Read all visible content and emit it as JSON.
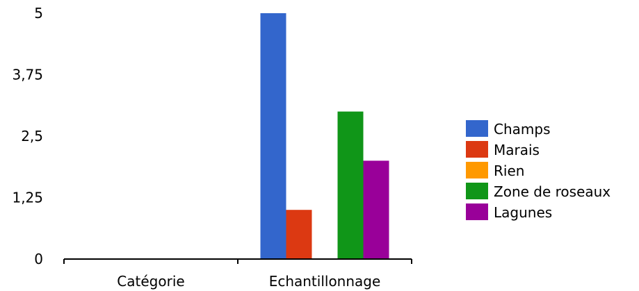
{
  "chart_data": {
    "type": "bar",
    "categories": [
      "Catégorie",
      "Echantillonnage"
    ],
    "ylim": [
      0,
      5
    ],
    "yticks": [
      "0",
      "1,25",
      "2,5",
      "3,75",
      "5"
    ],
    "ytick_values": [
      0,
      1.25,
      2.5,
      3.75,
      5
    ],
    "grid": false,
    "legend_position": "right",
    "series": [
      {
        "name": "Champs",
        "color": "#3366cc",
        "values": [
          0,
          5
        ]
      },
      {
        "name": "Marais",
        "color": "#dc3912",
        "values": [
          0,
          1
        ]
      },
      {
        "name": "Rien",
        "color": "#ff9900",
        "values": [
          0,
          0
        ]
      },
      {
        "name": "Zone de roseaux",
        "color": "#109618",
        "values": [
          0,
          3
        ]
      },
      {
        "name": "Lagunes",
        "color": "#990099",
        "values": [
          0,
          2
        ]
      }
    ]
  }
}
